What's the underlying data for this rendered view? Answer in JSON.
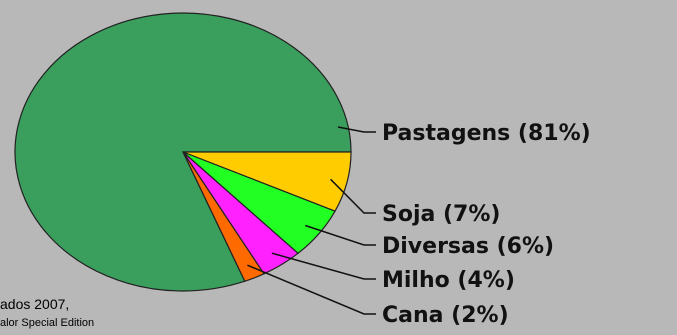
{
  "chart_data": {
    "type": "pie",
    "title": "",
    "slices": [
      {
        "label": "Pastagens (81%)",
        "value": 81,
        "color": "#3a9e5c"
      },
      {
        "label": "Soja (7%)",
        "value": 7,
        "color": "#ffcc00"
      },
      {
        "label": "Diversas (6%)",
        "value": 6,
        "color": "#22ff22"
      },
      {
        "label": "Milho (4%)",
        "value": 4,
        "color": "#ff22ff"
      },
      {
        "label": "Cana (2%)",
        "value": 2,
        "color": "#ff6a00"
      }
    ]
  },
  "source": {
    "line1": "ados 2007,",
    "line2": "alor Special Edition"
  }
}
